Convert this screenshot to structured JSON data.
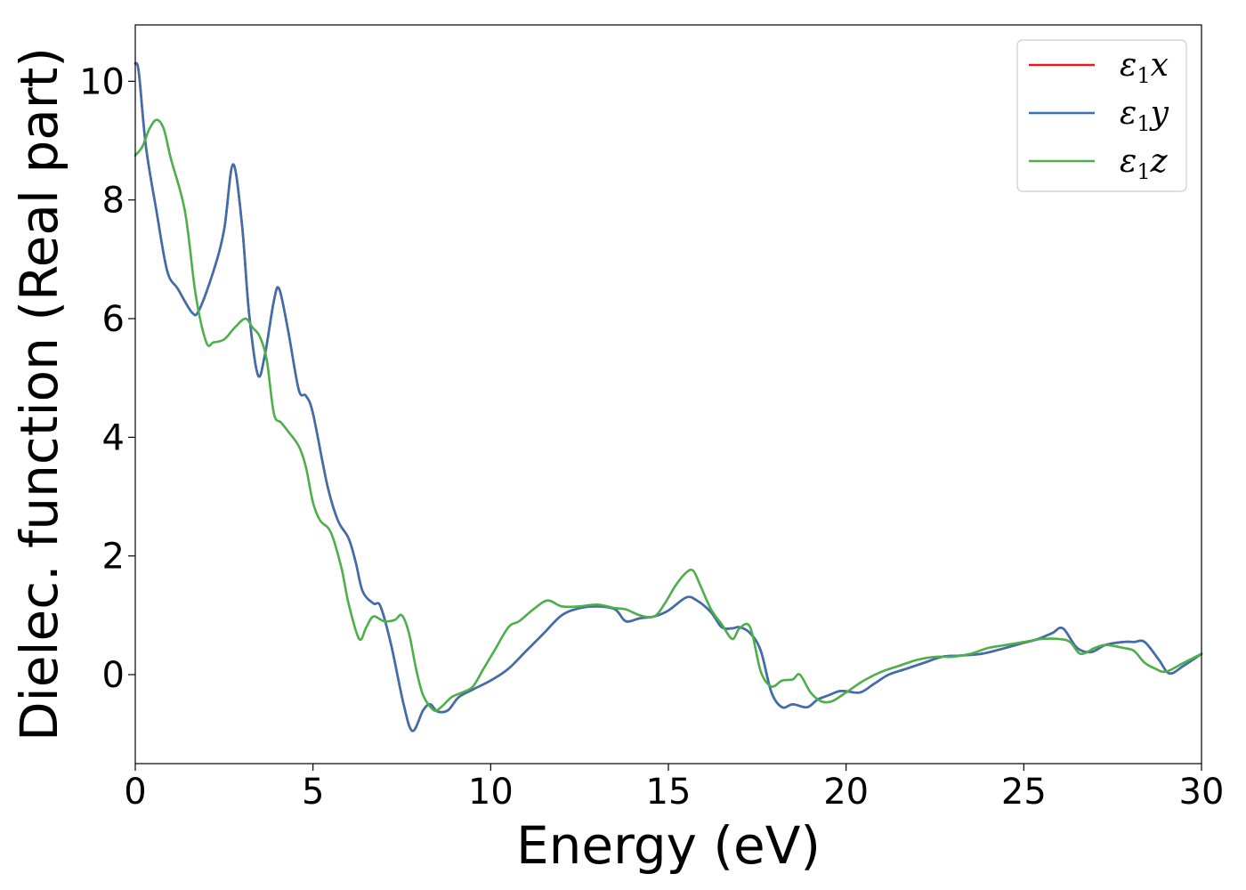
{
  "chart_data": {
    "type": "line",
    "title": "",
    "xlabel": "Energy (eV)",
    "ylabel": "Dielec. function (Real part)",
    "xlim": [
      0,
      30
    ],
    "ylim": [
      -1.5,
      10.95
    ],
    "xticks": [
      0,
      5,
      10,
      15,
      20,
      25,
      30
    ],
    "yticks": [
      0,
      2,
      4,
      6,
      8,
      10
    ],
    "grid": false,
    "legend_position": "top-right",
    "series": [
      {
        "name": "ε₁x",
        "legend_sub": "1",
        "legend_var": "x",
        "color": "#e41a1c",
        "x": [
          0,
          0.1,
          0.3,
          0.6,
          0.9,
          1.2,
          1.6,
          1.8,
          2.2,
          2.5,
          2.75,
          3.0,
          3.2,
          3.45,
          3.65,
          3.9,
          4.05,
          4.3,
          4.6,
          4.8,
          5.0,
          5.4,
          5.7,
          6.0,
          6.2,
          6.4,
          6.7,
          6.9,
          7.2,
          7.55,
          7.8,
          8.1,
          8.3,
          8.5,
          8.8,
          9.1,
          9.5,
          10.0,
          10.5,
          11.0,
          11.5,
          12.0,
          12.5,
          13.0,
          13.5,
          13.8,
          14.2,
          14.6,
          15.0,
          15.5,
          15.8,
          16.2,
          16.5,
          16.8,
          17.0,
          17.3,
          17.6,
          17.9,
          18.2,
          18.5,
          18.9,
          19.2,
          19.5,
          19.8,
          20.0,
          20.4,
          20.8,
          21.2,
          21.7,
          22.2,
          22.7,
          23.2,
          23.8,
          24.3,
          24.9,
          25.4,
          25.8,
          26.1,
          26.5,
          26.9,
          27.3,
          27.8,
          28.1,
          28.4,
          28.8,
          29.1,
          29.5,
          30.0
        ],
        "y": [
          10.3,
          10.15,
          8.9,
          7.8,
          6.8,
          6.5,
          6.1,
          6.15,
          6.8,
          7.5,
          8.6,
          7.6,
          6.1,
          5.05,
          5.4,
          6.3,
          6.5,
          5.8,
          4.8,
          4.7,
          4.4,
          3.2,
          2.6,
          2.3,
          1.9,
          1.4,
          1.2,
          1.15,
          0.5,
          -0.5,
          -0.95,
          -0.6,
          -0.5,
          -0.62,
          -0.6,
          -0.38,
          -0.25,
          -0.1,
          0.1,
          0.4,
          0.7,
          1.0,
          1.12,
          1.15,
          1.1,
          0.9,
          0.95,
          0.98,
          1.08,
          1.3,
          1.25,
          1.05,
          0.8,
          0.78,
          0.8,
          0.7,
          0.4,
          -0.3,
          -0.55,
          -0.5,
          -0.55,
          -0.42,
          -0.35,
          -0.28,
          -0.28,
          -0.3,
          -0.15,
          0.0,
          0.1,
          0.2,
          0.3,
          0.32,
          0.35,
          0.42,
          0.52,
          0.6,
          0.7,
          0.78,
          0.45,
          0.38,
          0.5,
          0.55,
          0.55,
          0.55,
          0.25,
          0.02,
          0.15,
          0.35
        ]
      },
      {
        "name": "ε₁y",
        "legend_sub": "1",
        "legend_var": "y",
        "color": "#3c6fae",
        "x": [
          0,
          0.1,
          0.3,
          0.6,
          0.9,
          1.2,
          1.6,
          1.8,
          2.2,
          2.5,
          2.75,
          3.0,
          3.2,
          3.45,
          3.65,
          3.9,
          4.05,
          4.3,
          4.6,
          4.8,
          5.0,
          5.4,
          5.7,
          6.0,
          6.2,
          6.4,
          6.7,
          6.9,
          7.2,
          7.55,
          7.8,
          8.1,
          8.3,
          8.5,
          8.8,
          9.1,
          9.5,
          10.0,
          10.5,
          11.0,
          11.5,
          12.0,
          12.5,
          13.0,
          13.5,
          13.8,
          14.2,
          14.6,
          15.0,
          15.5,
          15.8,
          16.2,
          16.5,
          16.8,
          17.0,
          17.3,
          17.6,
          17.9,
          18.2,
          18.5,
          18.9,
          19.2,
          19.5,
          19.8,
          20.0,
          20.4,
          20.8,
          21.2,
          21.7,
          22.2,
          22.7,
          23.2,
          23.8,
          24.3,
          24.9,
          25.4,
          25.8,
          26.1,
          26.5,
          26.9,
          27.3,
          27.8,
          28.1,
          28.4,
          28.8,
          29.1,
          29.5,
          30.0
        ],
        "y": [
          10.3,
          10.15,
          8.9,
          7.8,
          6.8,
          6.5,
          6.1,
          6.15,
          6.8,
          7.5,
          8.6,
          7.6,
          6.1,
          5.05,
          5.4,
          6.3,
          6.5,
          5.8,
          4.8,
          4.7,
          4.4,
          3.2,
          2.6,
          2.3,
          1.9,
          1.4,
          1.2,
          1.15,
          0.5,
          -0.5,
          -0.95,
          -0.6,
          -0.5,
          -0.62,
          -0.6,
          -0.38,
          -0.25,
          -0.1,
          0.1,
          0.4,
          0.7,
          1.0,
          1.12,
          1.15,
          1.1,
          0.9,
          0.95,
          0.98,
          1.08,
          1.3,
          1.25,
          1.05,
          0.8,
          0.78,
          0.8,
          0.7,
          0.4,
          -0.3,
          -0.55,
          -0.5,
          -0.55,
          -0.42,
          -0.35,
          -0.28,
          -0.28,
          -0.3,
          -0.15,
          0.0,
          0.1,
          0.2,
          0.3,
          0.32,
          0.35,
          0.42,
          0.52,
          0.6,
          0.7,
          0.78,
          0.45,
          0.38,
          0.5,
          0.55,
          0.55,
          0.55,
          0.25,
          0.02,
          0.15,
          0.35
        ]
      },
      {
        "name": "ε₁z",
        "legend_sub": "1",
        "legend_var": "z",
        "color": "#4daf4a",
        "x": [
          0,
          0.2,
          0.4,
          0.6,
          0.8,
          1.0,
          1.4,
          1.7,
          2.0,
          2.2,
          2.5,
          2.8,
          3.1,
          3.3,
          3.5,
          3.7,
          3.9,
          4.1,
          4.3,
          4.6,
          4.8,
          5.0,
          5.2,
          5.5,
          5.8,
          6.0,
          6.3,
          6.5,
          6.7,
          7.0,
          7.3,
          7.5,
          7.7,
          7.9,
          8.1,
          8.4,
          8.6,
          8.9,
          9.2,
          9.5,
          9.8,
          10.1,
          10.5,
          10.8,
          11.2,
          11.6,
          12.0,
          12.5,
          13.0,
          13.5,
          13.8,
          14.2,
          14.6,
          14.9,
          15.2,
          15.5,
          15.7,
          15.9,
          16.2,
          16.5,
          16.8,
          17.0,
          17.3,
          17.6,
          17.9,
          18.2,
          18.5,
          18.7,
          19.0,
          19.3,
          19.6,
          20.0,
          20.5,
          21.0,
          21.5,
          22.0,
          22.5,
          23.0,
          23.5,
          24.0,
          24.5,
          25.0,
          25.5,
          26.0,
          26.3,
          26.6,
          27.0,
          27.3,
          27.8,
          28.1,
          28.4,
          28.7,
          29.0,
          29.5,
          30.0
        ],
        "y": [
          8.75,
          8.9,
          9.2,
          9.35,
          9.2,
          8.7,
          7.8,
          6.4,
          5.6,
          5.6,
          5.65,
          5.85,
          6.0,
          5.85,
          5.7,
          5.3,
          4.4,
          4.25,
          4.1,
          3.85,
          3.5,
          2.9,
          2.6,
          2.4,
          1.8,
          1.2,
          0.6,
          0.8,
          0.98,
          0.9,
          0.92,
          1.0,
          0.7,
          0.1,
          -0.35,
          -0.6,
          -0.55,
          -0.38,
          -0.3,
          -0.2,
          0.1,
          0.4,
          0.8,
          0.9,
          1.1,
          1.25,
          1.15,
          1.15,
          1.18,
          1.12,
          1.1,
          1.0,
          0.98,
          1.2,
          1.5,
          1.72,
          1.75,
          1.5,
          1.1,
          0.85,
          0.6,
          0.78,
          0.8,
          0.05,
          -0.2,
          -0.1,
          -0.08,
          0.0,
          -0.3,
          -0.45,
          -0.45,
          -0.3,
          -0.1,
          0.05,
          0.15,
          0.25,
          0.3,
          0.3,
          0.35,
          0.45,
          0.5,
          0.55,
          0.6,
          0.6,
          0.55,
          0.35,
          0.45,
          0.5,
          0.45,
          0.4,
          0.2,
          0.1,
          0.05,
          0.2,
          0.35
        ]
      }
    ]
  }
}
